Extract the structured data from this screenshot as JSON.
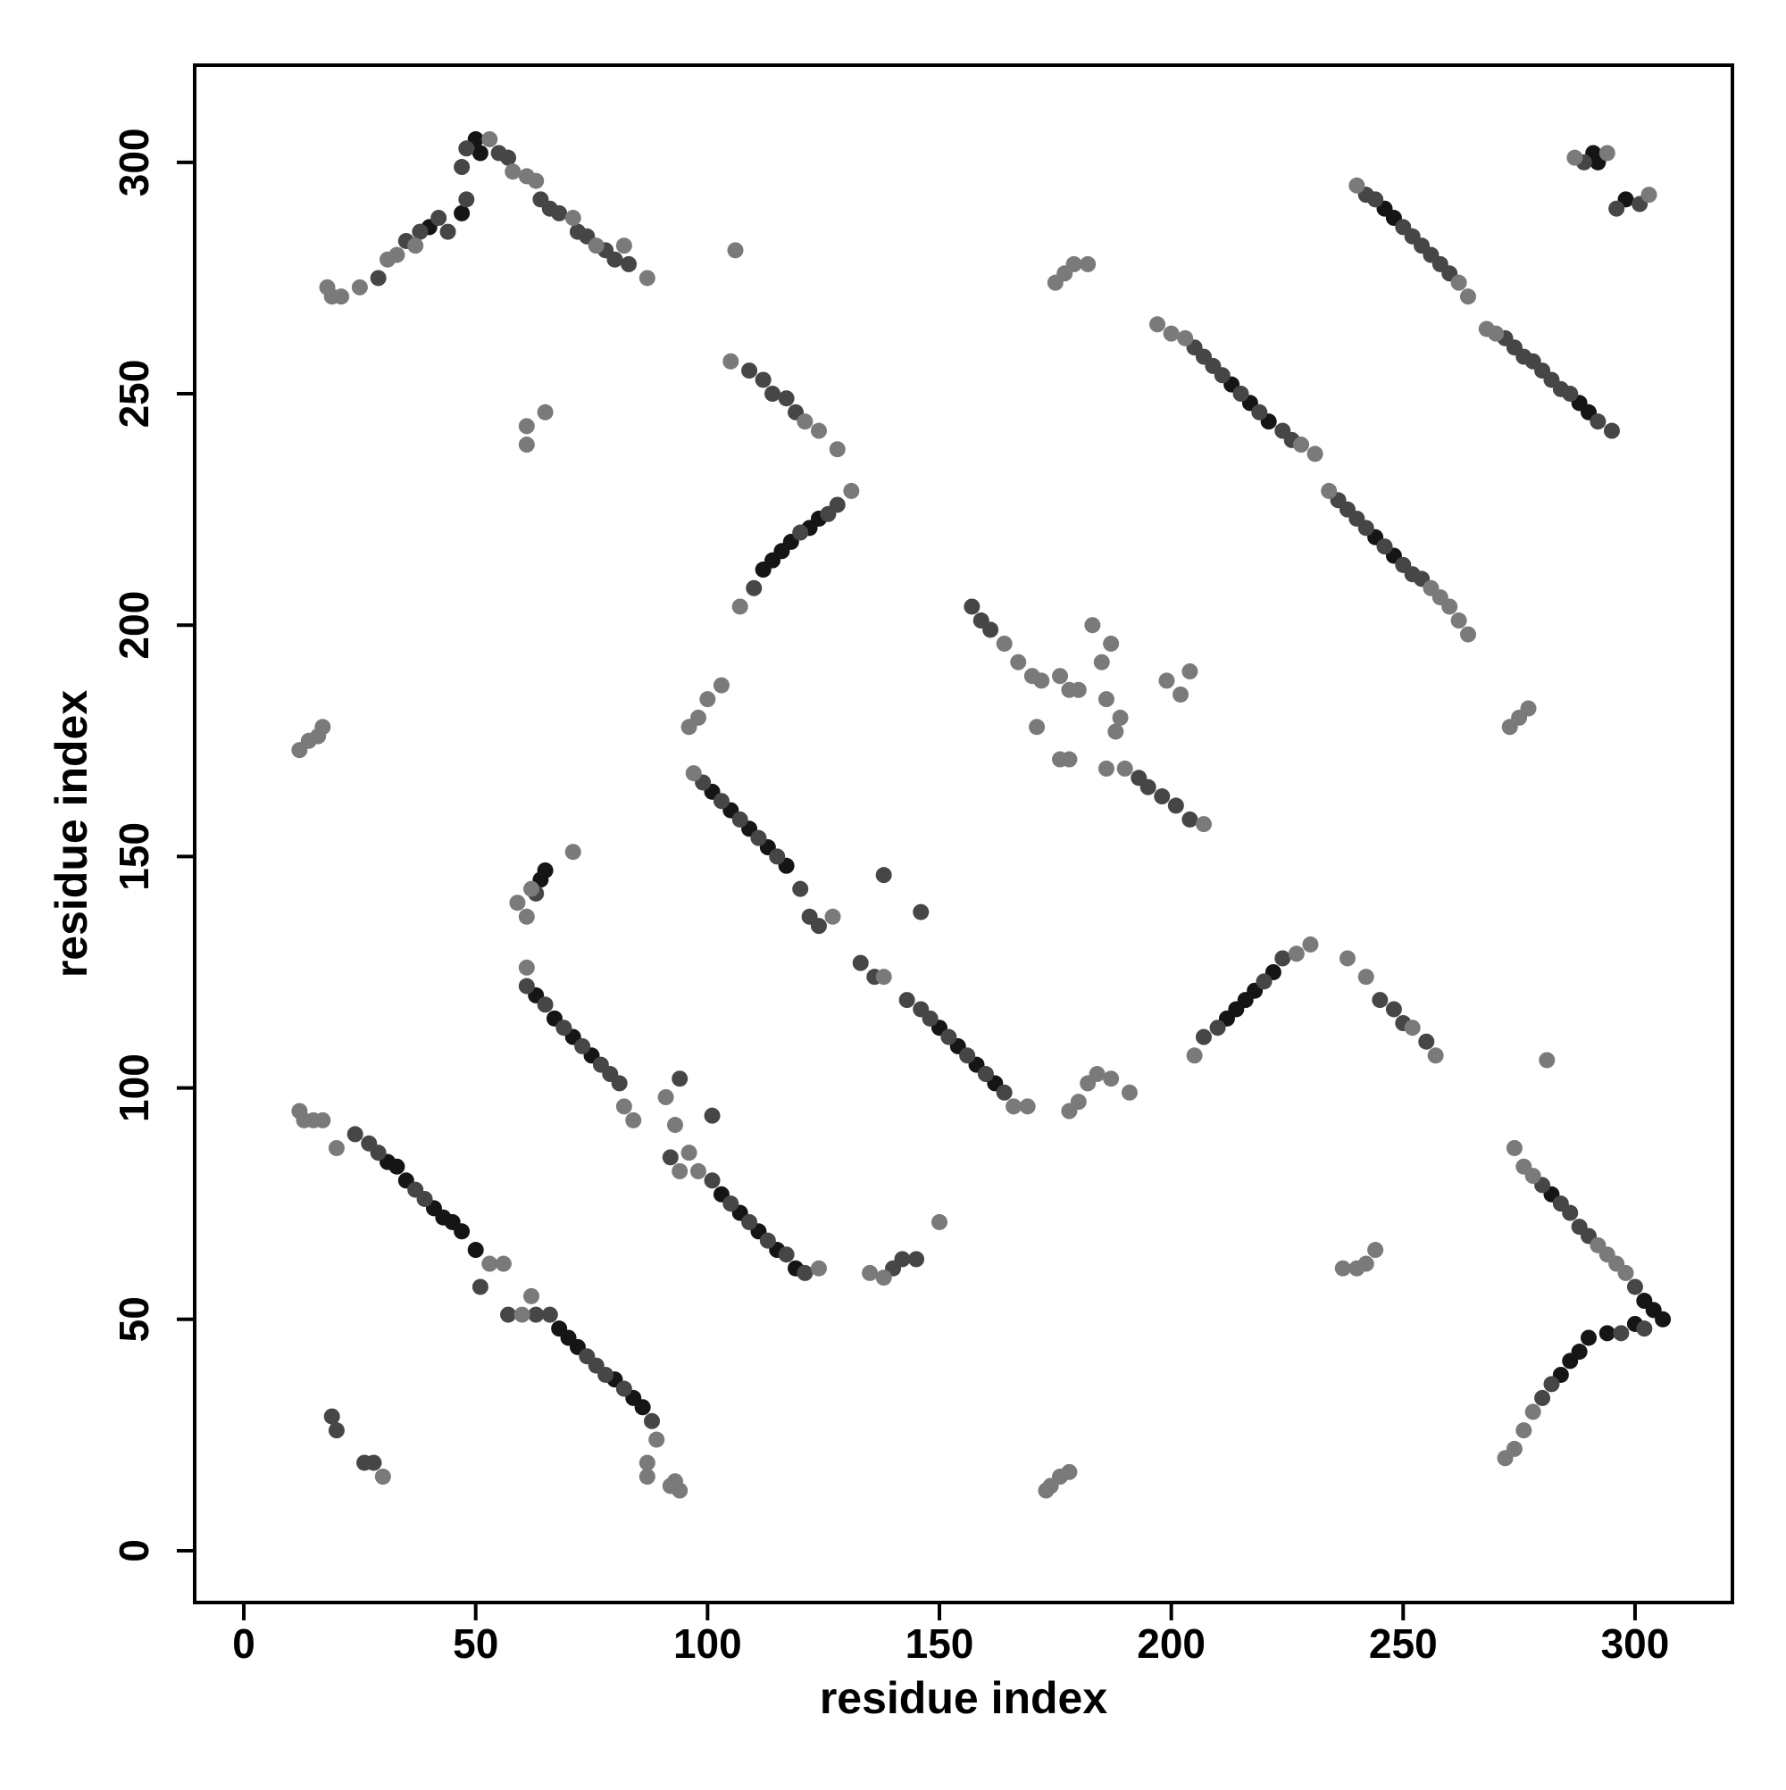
{
  "chart_data": {
    "type": "scatter",
    "xlabel": "residue index",
    "ylabel": "residue index",
    "xlim": [
      -10.6,
      321
    ],
    "ylim": [
      -11.2,
      321
    ],
    "xticks": [
      0,
      50,
      100,
      150,
      200,
      250,
      300
    ],
    "yticks": [
      0,
      50,
      100,
      150,
      200,
      250,
      300
    ],
    "grid": false,
    "series": [
      {
        "color": "#151515",
        "x": [
          50,
          51,
          40,
          47,
          31,
          33,
          35,
          41,
          43,
          45,
          47,
          50,
          68,
          70,
          72,
          80,
          84,
          86,
          63,
          67,
          71,
          75,
          64,
          65,
          103,
          107,
          111,
          115,
          119,
          101,
          105,
          109,
          113,
          117,
          150,
          154,
          158,
          162,
          112,
          114,
          116,
          118,
          122,
          124,
          212,
          214,
          216,
          218,
          222,
          217,
          221,
          213,
          246,
          248,
          244,
          248,
          290,
          288,
          291,
          292,
          298,
          290,
          288,
          286,
          284,
          294,
          304,
          306,
          302,
          300,
          282
        ],
        "values": [
          305,
          302,
          286,
          289,
          84,
          83,
          80,
          74,
          72,
          71,
          69,
          65,
          48,
          46,
          44,
          37,
          33,
          31,
          120,
          115,
          111,
          107,
          145,
          147,
          77,
          73,
          69,
          65,
          61,
          164,
          160,
          156,
          152,
          148,
          113,
          109,
          105,
          101,
          212,
          214,
          216,
          218,
          221,
          223,
          115,
          117,
          119,
          121,
          125,
          248,
          244,
          252,
          290,
          288,
          219,
          215,
          246,
          248,
          302,
          300,
          292,
          46,
          43,
          41,
          38,
          47,
          52,
          50,
          54,
          49,
          77
        ]
      },
      {
        "color": "#464646",
        "x": [
          29,
          35,
          38,
          42,
          44,
          48,
          47,
          48,
          55,
          57,
          64,
          66,
          68,
          72,
          74,
          78,
          80,
          83,
          24,
          27,
          29,
          37,
          39,
          51,
          57,
          63,
          66,
          74,
          76,
          78,
          82,
          88,
          19,
          20,
          26,
          28,
          61,
          65,
          69,
          73,
          77,
          79,
          81,
          63,
          94,
          101,
          92,
          101,
          105,
          109,
          113,
          117,
          121,
          140,
          142,
          145,
          99,
          103,
          107,
          111,
          115,
          120,
          122,
          124,
          133,
          136,
          138,
          146,
          143,
          146,
          148,
          152,
          156,
          160,
          164,
          110,
          120,
          126,
          128,
          109,
          112,
          114,
          117,
          119,
          157,
          159,
          161,
          193,
          195,
          198,
          201,
          204,
          207,
          210,
          220,
          224,
          245,
          248,
          250,
          255,
          205,
          207,
          209,
          211,
          215,
          219,
          224,
          226,
          236,
          238,
          240,
          242,
          246,
          250,
          252,
          254,
          242,
          244,
          250,
          252,
          254,
          256,
          258,
          260,
          272,
          274,
          276,
          278,
          280,
          282,
          284,
          286,
          292,
          295,
          289,
          296,
          301,
          280,
          284,
          286,
          288,
          290,
          300,
          302,
          282,
          280,
          297
        ],
        "values": [
          275,
          283,
          285,
          288,
          285,
          292,
          299,
          303,
          302,
          301,
          292,
          290,
          289,
          285,
          284,
          281,
          279,
          278,
          90,
          88,
          86,
          78,
          76,
          57,
          51,
          51,
          51,
          42,
          40,
          38,
          35,
          28,
          29,
          26,
          19,
          19,
          122,
          118,
          113,
          109,
          105,
          103,
          101,
          142,
          102,
          94,
          85,
          80,
          75,
          71,
          67,
          64,
          60,
          61,
          63,
          63,
          166,
          162,
          158,
          154,
          150,
          143,
          137,
          135,
          127,
          124,
          146,
          138,
          119,
          117,
          115,
          111,
          107,
          103,
          99,
          208,
          220,
          224,
          226,
          255,
          253,
          250,
          249,
          246,
          204,
          201,
          199,
          167,
          165,
          163,
          161,
          158,
          111,
          113,
          123,
          128,
          119,
          117,
          114,
          110,
          260,
          258,
          256,
          254,
          250,
          246,
          242,
          240,
          227,
          225,
          223,
          221,
          217,
          213,
          211,
          210,
          293,
          292,
          286,
          284,
          282,
          280,
          278,
          276,
          262,
          260,
          258,
          257,
          255,
          253,
          251,
          250,
          244,
          242,
          300,
          290,
          291,
          79,
          75,
          73,
          70,
          68,
          57,
          48,
          36,
          33,
          47
        ]
      },
      {
        "color": "#7a7a7a",
        "x": [
          18,
          19,
          21,
          25,
          31,
          33,
          37,
          53,
          58,
          61,
          63,
          71,
          76,
          82,
          87,
          20,
          12,
          13,
          15,
          17,
          53,
          56,
          60,
          62,
          89,
          87,
          87,
          92,
          93,
          94,
          30,
          12,
          14,
          16,
          17,
          61,
          82,
          84,
          59,
          61,
          62,
          71,
          91,
          93,
          94,
          96,
          98,
          124,
          135,
          138,
          150,
          96,
          98,
          100,
          103,
          97,
          127,
          138,
          166,
          169,
          107,
          131,
          105,
          121,
          124,
          128,
          106,
          61,
          61,
          65,
          164,
          167,
          170,
          172,
          176,
          171,
          178,
          180,
          183,
          187,
          185,
          186,
          189,
          188,
          186,
          190,
          178,
          176,
          199,
          202,
          204,
          207,
          175,
          177,
          179,
          182,
          178,
          180,
          182,
          184,
          187,
          191,
          205,
          227,
          230,
          238,
          242,
          252,
          257,
          197,
          200,
          203,
          228,
          231,
          234,
          256,
          258,
          260,
          262,
          264,
          240,
          262,
          264,
          268,
          270,
          287,
          294,
          303,
          273,
          275,
          277,
          281,
          237,
          240,
          242,
          244,
          274,
          276,
          278,
          292,
          294,
          296,
          298,
          272,
          274,
          276,
          278,
          173,
          174,
          176,
          178
        ],
        "values": [
          273,
          271,
          271,
          273,
          279,
          280,
          282,
          305,
          298,
          297,
          296,
          288,
          282,
          282,
          275,
          87,
          95,
          93,
          93,
          93,
          62,
          62,
          51,
          55,
          24,
          19,
          16,
          14,
          15,
          13,
          16,
          173,
          175,
          176,
          178,
          126,
          96,
          93,
          140,
          137,
          143,
          151,
          98,
          92,
          82,
          86,
          82,
          61,
          60,
          59,
          71,
          178,
          180,
          184,
          187,
          168,
          137,
          124,
          96,
          96,
          204,
          229,
          257,
          244,
          242,
          238,
          281,
          243,
          239,
          246,
          196,
          192,
          189,
          188,
          189,
          178,
          186,
          186,
          200,
          196,
          192,
          184,
          180,
          177,
          169,
          169,
          171,
          171,
          188,
          185,
          190,
          157,
          274,
          276,
          278,
          278,
          95,
          97,
          101,
          103,
          102,
          99,
          107,
          129,
          131,
          128,
          124,
          113,
          107,
          265,
          263,
          262,
          239,
          237,
          229,
          208,
          206,
          204,
          201,
          198,
          295,
          274,
          271,
          264,
          263,
          301,
          302,
          293,
          178,
          180,
          182,
          106,
          61,
          61,
          62,
          65,
          87,
          83,
          81,
          66,
          64,
          62,
          60,
          20,
          22,
          26,
          30,
          13,
          14,
          16,
          17
        ]
      }
    ]
  }
}
